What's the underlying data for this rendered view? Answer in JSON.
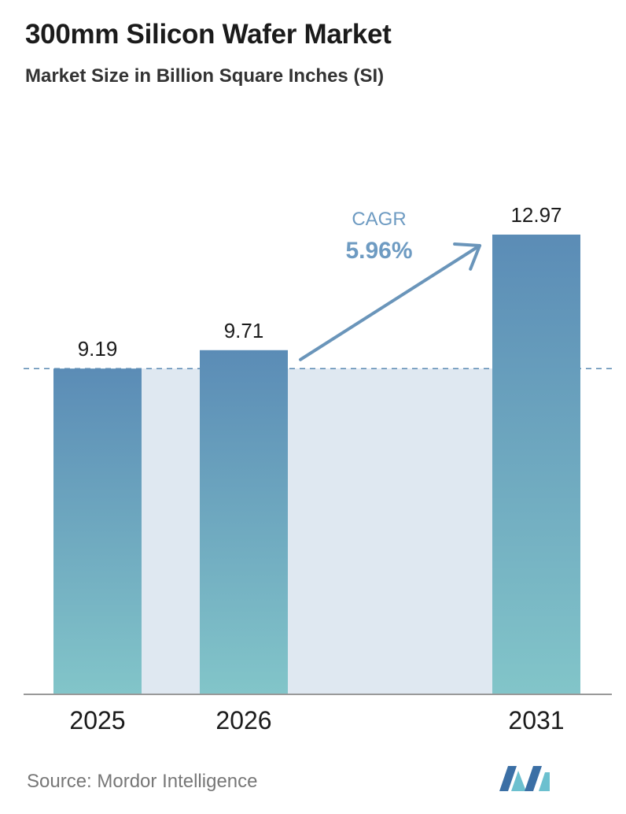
{
  "header": {
    "title": "300mm Silicon Wafer Market",
    "subtitle": "Market Size in Billion Square Inches (SI)"
  },
  "chart_data": {
    "type": "bar",
    "categories": [
      "2025",
      "2026",
      "2031"
    ],
    "values": [
      9.19,
      9.71,
      12.97
    ],
    "value_labels": [
      "9.19",
      "9.71",
      "12.97"
    ],
    "title": "300mm Silicon Wafer Market",
    "subtitle": "Market Size in Billion Square Inches (SI)",
    "xlabel": "",
    "ylabel": "",
    "ylim": [
      0,
      12.97
    ],
    "grid": false,
    "reference_line": {
      "value": 9.19,
      "style": "dashed"
    },
    "annotation": {
      "label": "CAGR",
      "value": "5.96%",
      "from": "2026",
      "to": "2031"
    }
  },
  "footer": {
    "source": "Source: Mordor Intelligence"
  },
  "logo": {
    "name": "mordor-intelligence-logo",
    "text": "Mordor Intelligence"
  },
  "colors": {
    "bar_top": "#5b8cb6",
    "bar_bottom": "#82c5c9",
    "shade": "#dfe8f1",
    "reference_line": "#5a8ab2",
    "arrow": "#6a95ba",
    "cagr_label": "#6e9bc2",
    "axis": "#999999",
    "logo_dark": "#3b6fa5",
    "logo_light": "#6cc0cf"
  }
}
